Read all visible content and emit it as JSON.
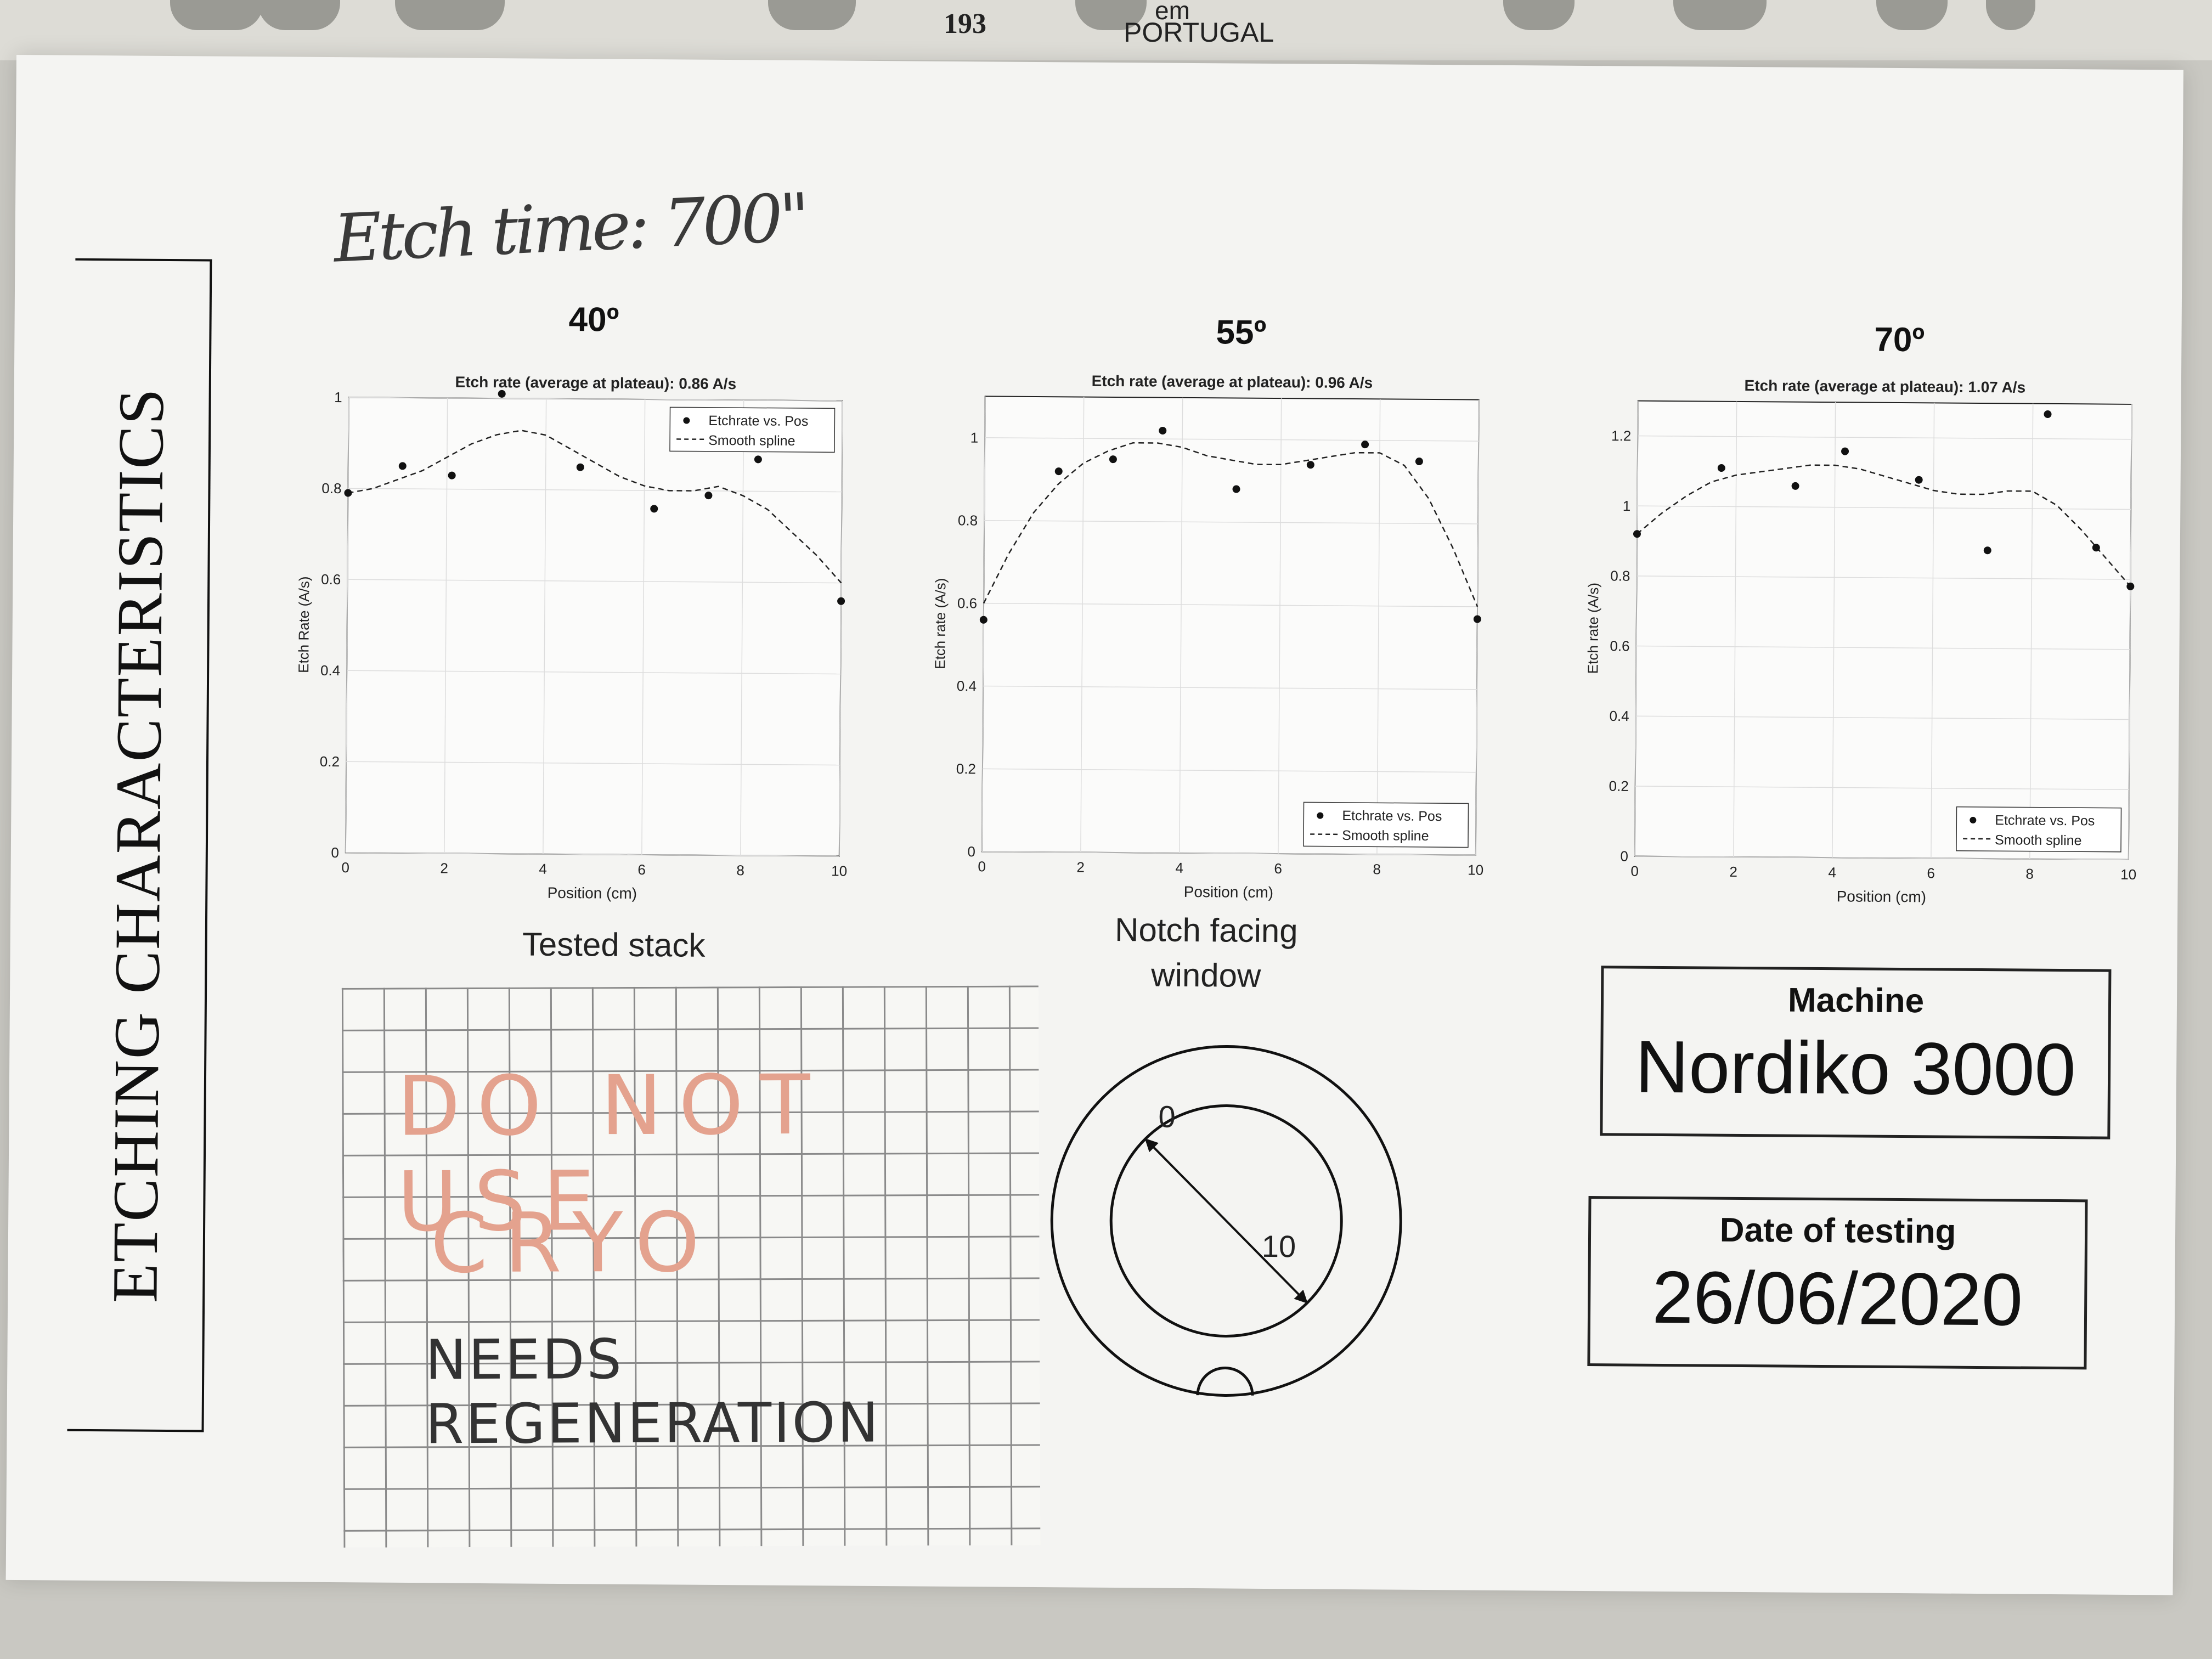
{
  "sleeve": {
    "page_number": "193",
    "maker_line1": "em",
    "maker_line2": "PORTUGAL"
  },
  "sheet": {
    "vertical_title": "ETCHING CHARACTERISTICS",
    "handwritten_note": "Etch time: 700\""
  },
  "charts": {
    "xlabel": "Position (cm)",
    "legend_points": "Etchrate vs. Pos",
    "legend_spline": "Smooth spline"
  },
  "chart_data": [
    {
      "type": "scatter",
      "angle_label": "40º",
      "title": "Etch rate (average at plateau): 0.86 A/s",
      "xlabel": "Position (cm)",
      "ylabel": "Etch Rate (A/s)",
      "xlim": [
        0,
        10
      ],
      "ylim": [
        0,
        1.0
      ],
      "xticks": [
        0,
        2,
        4,
        6,
        8,
        10
      ],
      "yticks": [
        0,
        0.2,
        0.4,
        0.6,
        0.8,
        1
      ],
      "ytick_labels": [
        "0",
        "0.2",
        "0.4",
        "0.6",
        "0.8",
        "1"
      ],
      "legend_position": "top-right",
      "grid": true,
      "series": [
        {
          "name": "Etchrate vs. Pos",
          "x": [
            0,
            1.1,
            2.1,
            3.1,
            4.7,
            6.2,
            7.3,
            8.3,
            10.0
          ],
          "y": [
            0.79,
            0.85,
            0.83,
            1.01,
            0.85,
            0.76,
            0.79,
            0.87,
            0.56
          ]
        },
        {
          "name": "Smooth spline",
          "x": [
            0,
            0.5,
            1,
            1.5,
            2,
            2.5,
            3,
            3.5,
            4,
            4.5,
            5,
            5.5,
            6,
            6.5,
            7,
            7.5,
            8,
            8.5,
            9,
            9.5,
            10
          ],
          "y": [
            0.79,
            0.8,
            0.82,
            0.84,
            0.87,
            0.9,
            0.92,
            0.93,
            0.92,
            0.89,
            0.86,
            0.83,
            0.81,
            0.8,
            0.8,
            0.81,
            0.79,
            0.76,
            0.71,
            0.66,
            0.6
          ]
        }
      ]
    },
    {
      "type": "scatter",
      "angle_label": "55º",
      "title": "Etch rate (average at plateau): 0.96 A/s",
      "xlabel": "Position (cm)",
      "ylabel": "Etch rate (A/s)",
      "xlim": [
        0,
        10
      ],
      "ylim": [
        0,
        1.1
      ],
      "xticks": [
        0,
        2,
        4,
        6,
        8,
        10
      ],
      "yticks": [
        0,
        0.2,
        0.4,
        0.6,
        0.8,
        1
      ],
      "ytick_labels": [
        "0",
        "0.2",
        "0.4",
        "0.6",
        "0.8",
        "1"
      ],
      "legend_position": "bottom-right",
      "grid": true,
      "series": [
        {
          "name": "Etchrate vs. Pos",
          "x": [
            0,
            1.5,
            2.6,
            3.6,
            5.1,
            6.6,
            7.7,
            8.8,
            10.0
          ],
          "y": [
            0.56,
            0.92,
            0.95,
            1.02,
            0.88,
            0.94,
            0.99,
            0.95,
            0.57
          ]
        },
        {
          "name": "Smooth spline",
          "x": [
            0,
            0.5,
            1,
            1.5,
            2,
            2.5,
            3,
            3.5,
            4,
            4.5,
            5,
            5.5,
            6,
            6.5,
            7,
            7.5,
            8,
            8.5,
            9,
            9.5,
            10
          ],
          "y": [
            0.6,
            0.72,
            0.82,
            0.89,
            0.94,
            0.97,
            0.99,
            0.99,
            0.98,
            0.96,
            0.95,
            0.94,
            0.94,
            0.95,
            0.96,
            0.97,
            0.97,
            0.94,
            0.86,
            0.74,
            0.6
          ]
        }
      ]
    },
    {
      "type": "scatter",
      "angle_label": "70º",
      "title": "Etch rate (average at plateau): 1.07 A/s",
      "xlabel": "Position (cm)",
      "ylabel": "Etch rate (A/s)",
      "xlim": [
        0,
        10
      ],
      "ylim": [
        0,
        1.3
      ],
      "xticks": [
        0,
        2,
        4,
        6,
        8,
        10
      ],
      "yticks": [
        0,
        0.2,
        0.4,
        0.6,
        0.8,
        1,
        1.2
      ],
      "ytick_labels": [
        "0",
        "0.2",
        "0.4",
        "0.6",
        "0.8",
        "1",
        "1.2"
      ],
      "legend_position": "bottom-right",
      "grid": true,
      "series": [
        {
          "name": "Etchrate vs. Pos",
          "x": [
            0,
            1.7,
            3.2,
            4.2,
            5.7,
            7.1,
            8.3,
            9.3,
            10.0
          ],
          "y": [
            0.92,
            1.11,
            1.06,
            1.16,
            1.08,
            0.88,
            1.27,
            0.89,
            0.78
          ]
        },
        {
          "name": "Smooth spline",
          "x": [
            0,
            0.5,
            1,
            1.5,
            2,
            2.5,
            3,
            3.5,
            4,
            4.5,
            5,
            5.5,
            6,
            6.5,
            7,
            7.5,
            8,
            8.5,
            9,
            9.5,
            10
          ],
          "y": [
            0.92,
            0.98,
            1.03,
            1.07,
            1.09,
            1.1,
            1.11,
            1.12,
            1.12,
            1.11,
            1.09,
            1.07,
            1.05,
            1.04,
            1.04,
            1.05,
            1.05,
            1.01,
            0.94,
            0.86,
            0.78
          ]
        }
      ]
    }
  ],
  "tested_stack": {
    "label": "Tested stack",
    "line1": "DO NOT USE",
    "line2": "CRYO",
    "line3": "NEEDS REGENERATION"
  },
  "notch": {
    "label_line1": "Notch facing",
    "label_line2": "window",
    "start": "0",
    "end": "10"
  },
  "machine": {
    "label": "Machine",
    "value": "Nordiko 3000"
  },
  "date": {
    "label": "Date of testing",
    "value": "26/06/2020"
  },
  "colors": {
    "paper": "#f4f4f2",
    "ink": "#111111",
    "red_pencil": "#e4a28e"
  }
}
